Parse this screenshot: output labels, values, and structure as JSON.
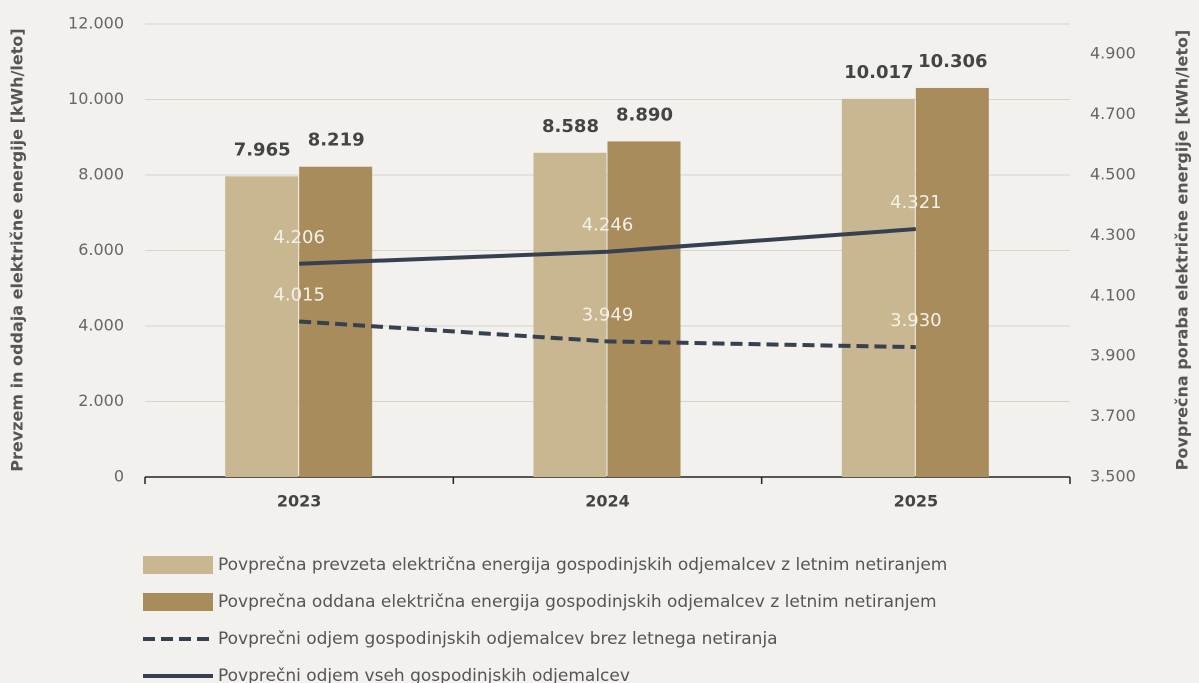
{
  "chart_data": {
    "type": "bar",
    "categories": [
      "2023",
      "2024",
      "2025"
    ],
    "series": [
      {
        "name": "Povprečna prevzeta električna energija gospodinjskih odjemalcev z letnim netiranjem",
        "type": "bar",
        "color": "#c8b790",
        "values": [
          7965,
          8588,
          10017
        ],
        "value_labels": [
          "7.965",
          "8.588",
          "10.017"
        ]
      },
      {
        "name": "Povprečna oddana električna energija gospodinjskih odjemalcev z letnim netiranjem",
        "type": "bar",
        "color": "#a98c5c",
        "values": [
          8219,
          8890,
          10306
        ],
        "value_labels": [
          "8.219",
          "8.890",
          "10.306"
        ]
      },
      {
        "name": "Povprečni odjem gospodinjskih odjemalcev brez letnega netiranja",
        "type": "line",
        "dashed": true,
        "axis": "y2",
        "color": "#36404f",
        "values": [
          4015,
          3949,
          3930
        ],
        "value_labels": [
          "4.015",
          "3.949",
          "3.930"
        ]
      },
      {
        "name": "Povprečni odjem vseh gospodinjskih odjemalcev",
        "type": "line",
        "dashed": false,
        "axis": "y2",
        "color": "#36404f",
        "values": [
          4206,
          4246,
          4321
        ],
        "value_labels": [
          "4.206",
          "4.246",
          "4.321"
        ]
      }
    ],
    "y_label": "Prevzem in oddaja električne energije [kWh/leto]",
    "y2_label": "Povprečna poraba električne energije [kWh/leto]",
    "ylim": [
      0,
      12000
    ],
    "yticks": [
      0,
      {
        "value": 2000,
        "label": "2.000"
      },
      {
        "value": 4000,
        "label": "4.000"
      },
      {
        "value": 6000,
        "label": "6.000"
      },
      {
        "value": 8000,
        "label": "8.000"
      },
      {
        "value": 10000,
        "label": "10.000"
      },
      {
        "value": 12000,
        "label": "12.000"
      }
    ],
    "y2lim": [
      3500,
      5000
    ],
    "y2ticks": [
      {
        "value": 3500,
        "label": "3.500"
      },
      {
        "value": 3700,
        "label": "3.700"
      },
      {
        "value": 3900,
        "label": "3.900"
      },
      {
        "value": 4100,
        "label": "4.100"
      },
      {
        "value": 4300,
        "label": "4.300"
      },
      {
        "value": 4500,
        "label": "4.500"
      },
      {
        "value": 4700,
        "label": "4.700"
      },
      {
        "value": 4900,
        "label": "4.900"
      }
    ],
    "grid": true,
    "legend": "bottom"
  }
}
